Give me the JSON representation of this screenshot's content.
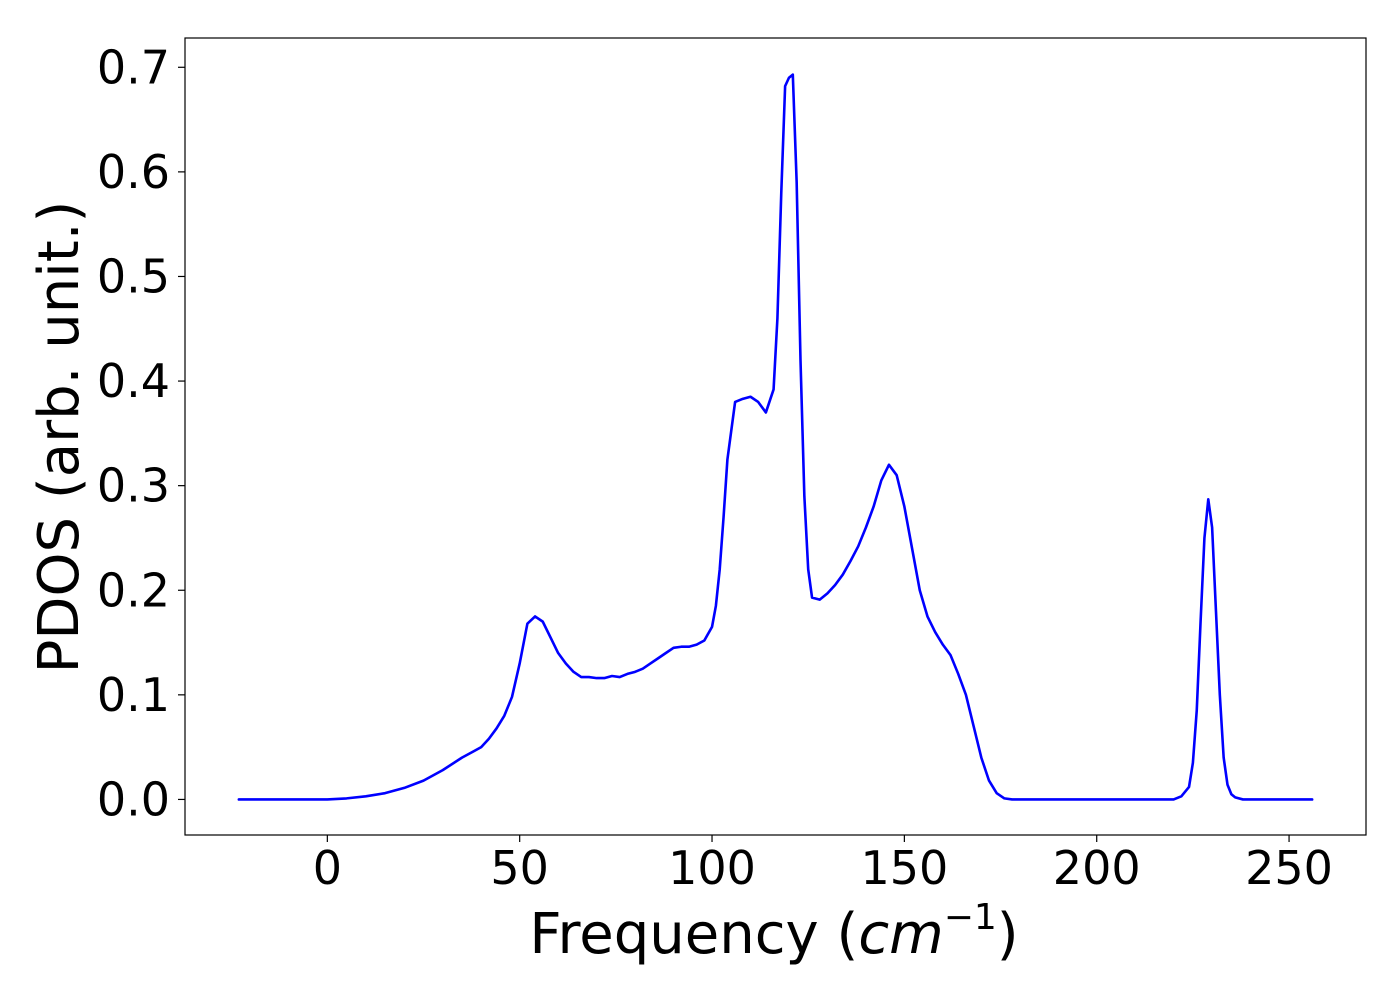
{
  "chart_data": {
    "type": "line",
    "xlabel": "Frequency ",
    "xlabel_unit": {
      "open": "(",
      "base": "cm",
      "exponent": "−1",
      "close": ")"
    },
    "ylabel": "PDOS (arb. unit.)",
    "xlim": [
      -37,
      270
    ],
    "ylim": [
      -0.034,
      0.728
    ],
    "xticks": [
      0,
      50,
      100,
      150,
      200,
      250
    ],
    "xtick_labels": [
      "0",
      "50",
      "100",
      "150",
      "200",
      "250"
    ],
    "yticks": [
      0.0,
      0.1,
      0.2,
      0.3,
      0.4,
      0.5,
      0.6,
      0.7
    ],
    "ytick_labels": [
      "0.0",
      "0.1",
      "0.2",
      "0.3",
      "0.4",
      "0.5",
      "0.6",
      "0.7"
    ],
    "grid": false,
    "legend": false,
    "series": [
      {
        "color": "#0000ff",
        "x": [
          -23,
          -10,
          0,
          5,
          10,
          15,
          20,
          25,
          30,
          35,
          38,
          40,
          42,
          44,
          46,
          48,
          50,
          52,
          54,
          56,
          58,
          60,
          62,
          64,
          66,
          68,
          70,
          72,
          74,
          76,
          78,
          80,
          82,
          84,
          86,
          88,
          90,
          92,
          94,
          96,
          98,
          100,
          101,
          102,
          103,
          104,
          106,
          108,
          110,
          112,
          114,
          116,
          117,
          118,
          119,
          120,
          121,
          122,
          123,
          124,
          125,
          126,
          128,
          130,
          132,
          134,
          136,
          138,
          140,
          142,
          144,
          146,
          148,
          150,
          152,
          154,
          156,
          158,
          160,
          162,
          164,
          166,
          168,
          170,
          172,
          174,
          176,
          178,
          180,
          190,
          200,
          210,
          220,
          222,
          224,
          225,
          226,
          227,
          228,
          229,
          230,
          231,
          232,
          233,
          234,
          235,
          236,
          238,
          240,
          245,
          256
        ],
        "y": [
          0.0,
          0.0,
          0.0,
          0.001,
          0.003,
          0.006,
          0.011,
          0.018,
          0.028,
          0.04,
          0.046,
          0.05,
          0.058,
          0.068,
          0.08,
          0.098,
          0.13,
          0.168,
          0.175,
          0.17,
          0.155,
          0.14,
          0.13,
          0.122,
          0.117,
          0.117,
          0.116,
          0.116,
          0.118,
          0.117,
          0.12,
          0.122,
          0.125,
          0.13,
          0.135,
          0.14,
          0.145,
          0.146,
          0.146,
          0.148,
          0.152,
          0.165,
          0.185,
          0.22,
          0.27,
          0.325,
          0.38,
          0.383,
          0.385,
          0.38,
          0.37,
          0.392,
          0.46,
          0.58,
          0.682,
          0.69,
          0.693,
          0.59,
          0.42,
          0.29,
          0.22,
          0.193,
          0.191,
          0.197,
          0.205,
          0.215,
          0.228,
          0.242,
          0.26,
          0.28,
          0.305,
          0.32,
          0.31,
          0.28,
          0.24,
          0.2,
          0.175,
          0.16,
          0.148,
          0.138,
          0.12,
          0.1,
          0.07,
          0.04,
          0.018,
          0.006,
          0.001,
          0.0,
          0.0,
          0.0,
          0.0,
          0.0,
          0.0,
          0.003,
          0.012,
          0.035,
          0.085,
          0.17,
          0.25,
          0.287,
          0.26,
          0.18,
          0.1,
          0.04,
          0.014,
          0.005,
          0.002,
          0.0,
          0.0,
          0.0,
          0.0
        ]
      }
    ]
  }
}
